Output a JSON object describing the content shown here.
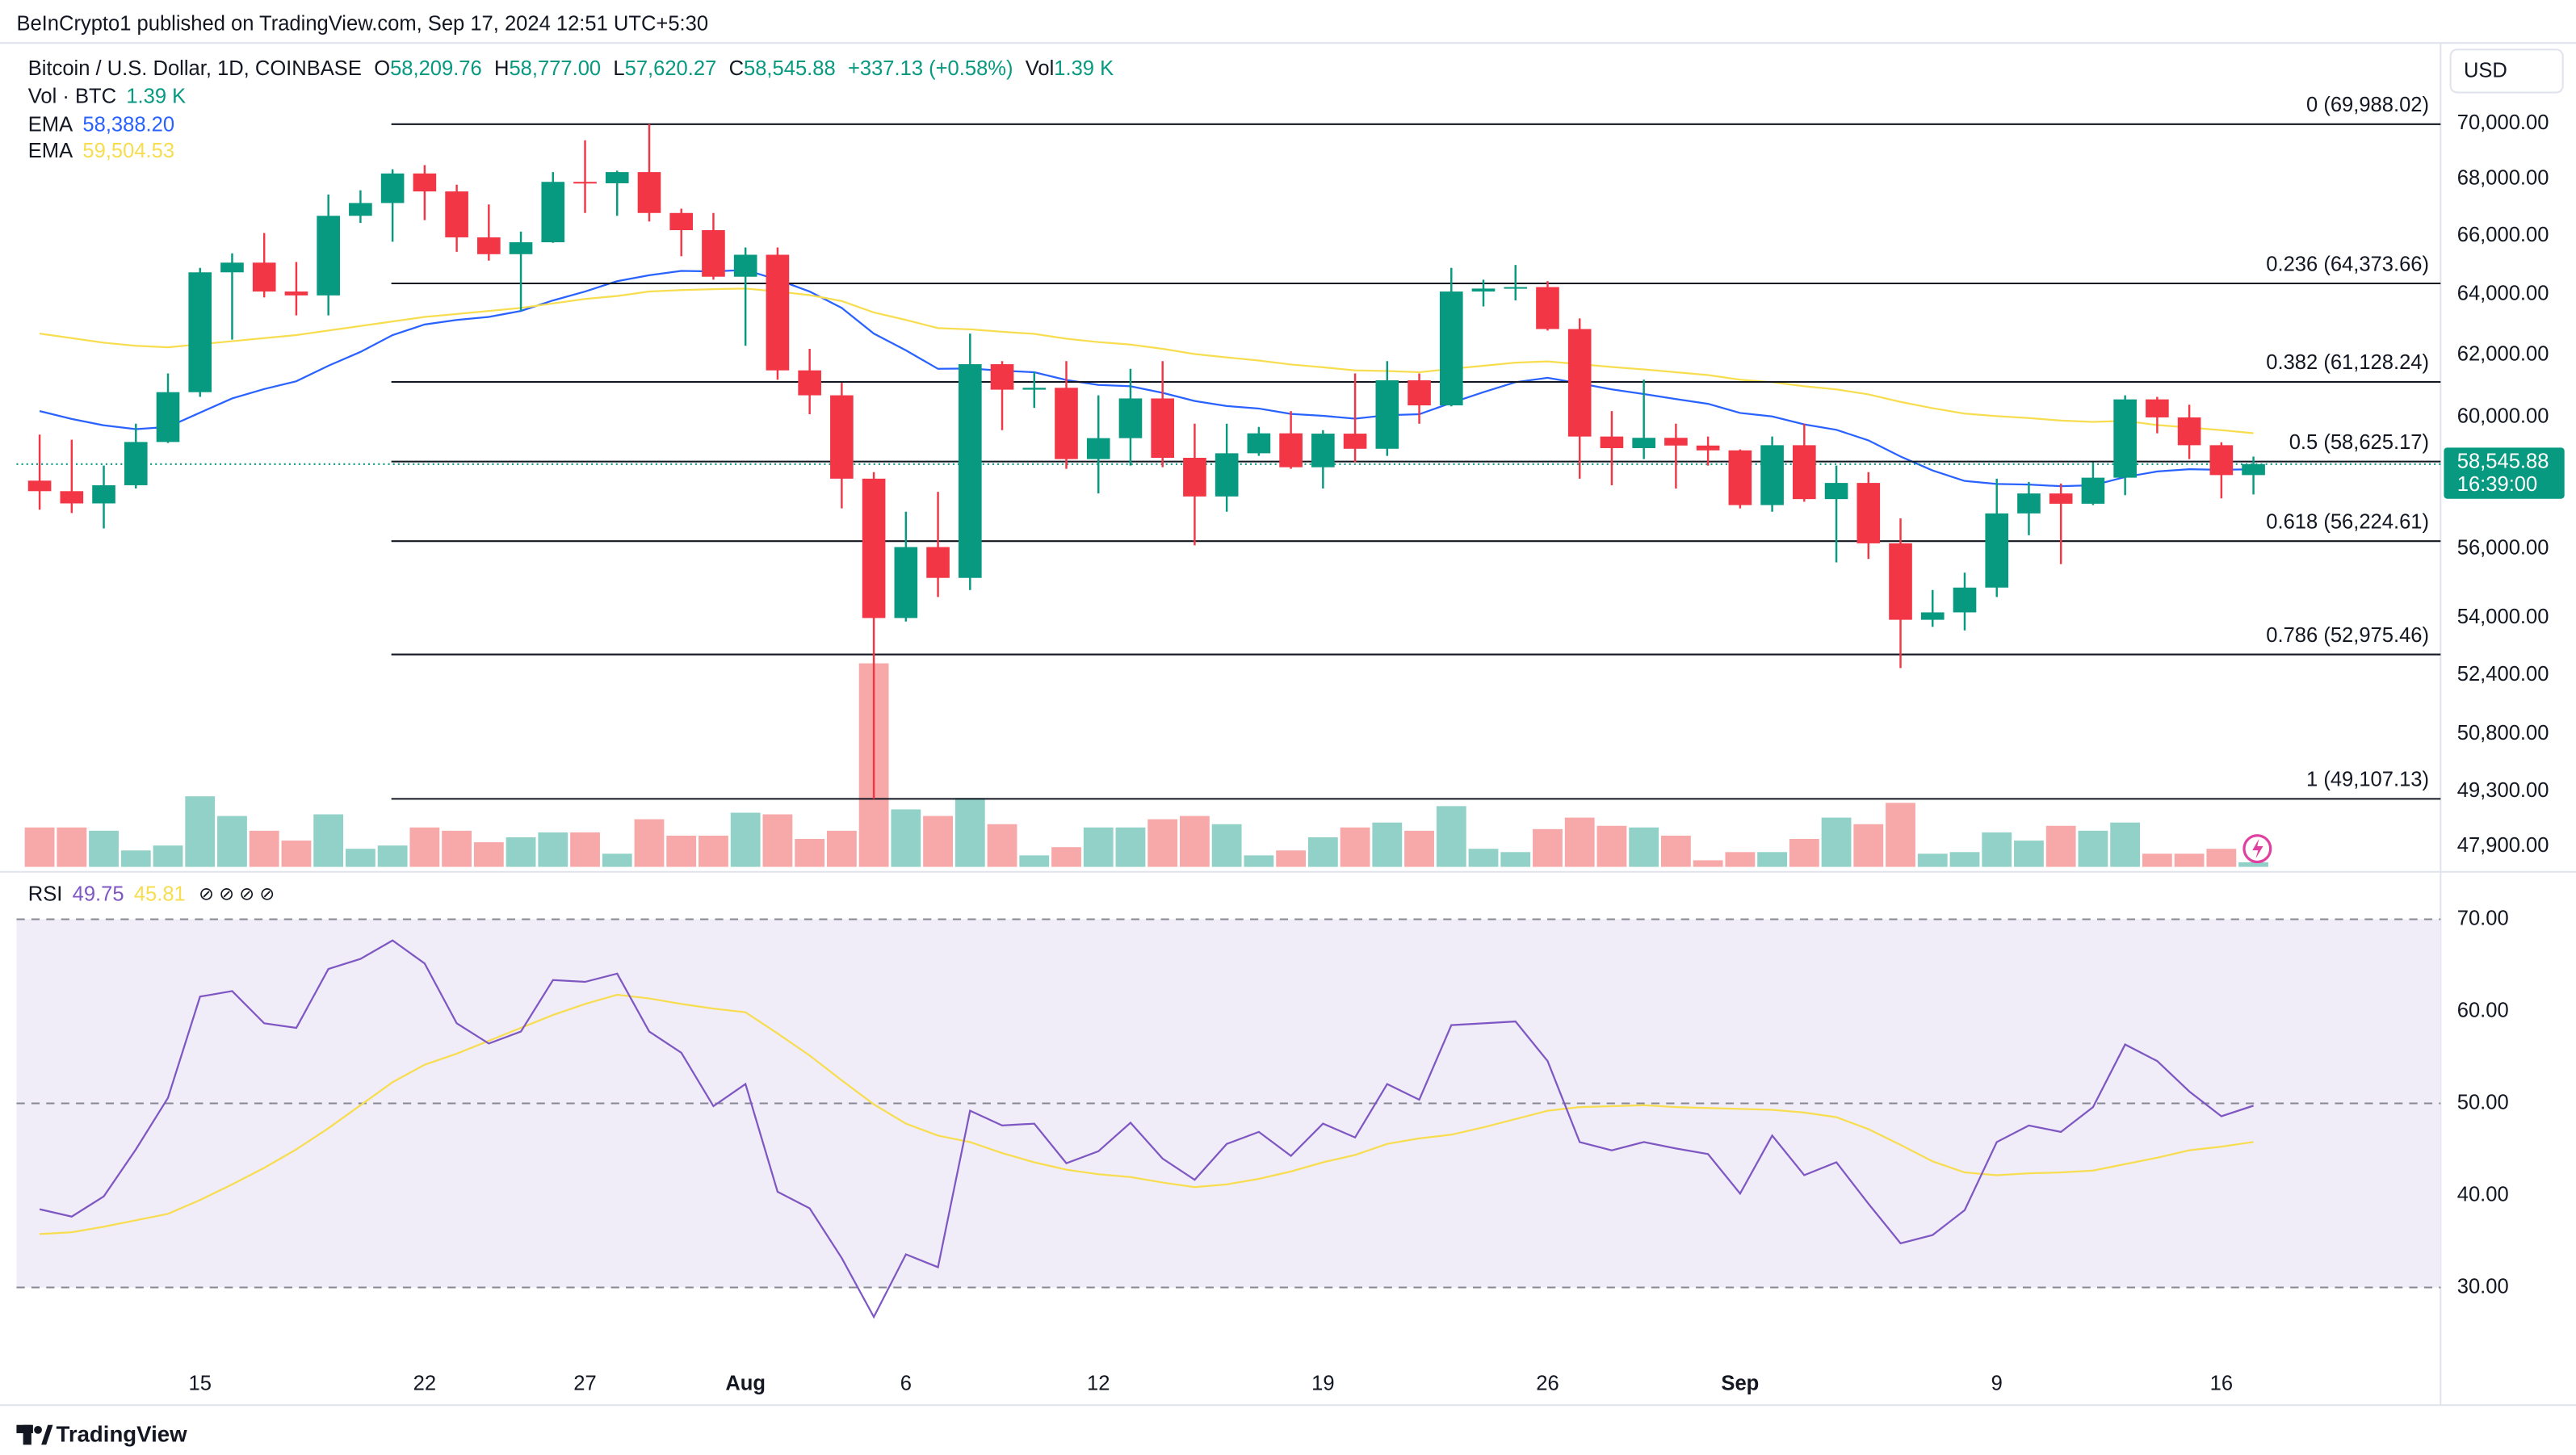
{
  "header": {
    "published": "BeInCrypto1 published on TradingView.com, Sep 17, 2024 12:51 UTC+5:30",
    "symbol": "Bitcoin / U.S. Dollar, 1D, COINBASE",
    "ohlc": [
      {
        "key": "O",
        "value": "58,209.76"
      },
      {
        "key": "H",
        "value": "58,777.00"
      },
      {
        "key": "L",
        "value": "57,620.27"
      },
      {
        "key": "C",
        "value": "58,545.88"
      }
    ],
    "change": "+337.13 (+0.58%)",
    "vol_key": "Vol",
    "vol_value": "1.39 K"
  },
  "currency": "USD",
  "footer": {
    "brand": "TradingView"
  },
  "chart_data": [
    {
      "type": "candlestick",
      "log_scale": true,
      "grid": false,
      "categories": [
        null,
        null,
        null,
        null,
        null,
        "15",
        null,
        null,
        null,
        null,
        null,
        null,
        "22",
        null,
        null,
        null,
        null,
        "27",
        null,
        null,
        null,
        null,
        "Aug",
        null,
        null,
        null,
        null,
        "6",
        null,
        null,
        null,
        null,
        null,
        "12",
        null,
        null,
        null,
        null,
        null,
        null,
        "19",
        null,
        null,
        null,
        null,
        null,
        null,
        "26",
        null,
        null,
        null,
        null,
        null,
        "Sep",
        null,
        null,
        null,
        null,
        null,
        null,
        null,
        "9",
        null,
        null,
        null,
        null,
        null,
        null,
        "16",
        null
      ],
      "open": [
        58040,
        57720,
        57350,
        57900,
        59230,
        60800,
        64750,
        65080,
        64100,
        63970,
        66700,
        67150,
        68200,
        67560,
        65950,
        65370,
        65780,
        67900,
        67850,
        68250,
        66800,
        66200,
        64600,
        65350,
        61500,
        60700,
        58100,
        54000,
        56050,
        55150,
        61700,
        60880,
        60940,
        58700,
        59350,
        60600,
        58740,
        57560,
        58880,
        59500,
        58450,
        59490,
        59020,
        61180,
        60380,
        64100,
        64200,
        64250,
        62850,
        59400,
        59040,
        59360,
        59120,
        58970,
        57300,
        59130,
        57480,
        57970,
        56160,
        53950,
        54160,
        54870,
        57050,
        57650,
        57340,
        58130,
        60570,
        60000,
        59130,
        58209.76
      ],
      "high": [
        59460,
        59300,
        58500,
        59800,
        61400,
        64900,
        65400,
        66100,
        65100,
        67450,
        67600,
        68350,
        68500,
        67800,
        67100,
        66150,
        68250,
        69400,
        68300,
        69988.02,
        66950,
        66800,
        65600,
        65600,
        62200,
        61100,
        58300,
        57100,
        57700,
        62700,
        61800,
        61450,
        61800,
        60700,
        61550,
        61800,
        59800,
        59800,
        59700,
        60200,
        59600,
        61400,
        61800,
        61400,
        64900,
        64500,
        65000,
        64450,
        63200,
        60200,
        61200,
        59800,
        59400,
        59000,
        59400,
        59800,
        58500,
        58300,
        56900,
        54800,
        55300,
        58100,
        58000,
        57950,
        58600,
        60700,
        60650,
        60400,
        59220,
        58777.0
      ],
      "low": [
        57160,
        57060,
        56600,
        57800,
        59200,
        60650,
        62500,
        63900,
        63300,
        63300,
        66450,
        65800,
        66550,
        65450,
        65150,
        63450,
        65760,
        66800,
        66700,
        66500,
        65300,
        64500,
        62300,
        61200,
        60100,
        57200,
        49107.13,
        53900,
        54600,
        54800,
        59600,
        60300,
        58400,
        57650,
        58500,
        58450,
        56100,
        57100,
        58800,
        58400,
        57800,
        58600,
        58800,
        59800,
        60350,
        63600,
        63800,
        62800,
        58100,
        57900,
        58700,
        57800,
        58500,
        57200,
        57100,
        57400,
        55600,
        55700,
        52600,
        53750,
        53650,
        54600,
        56400,
        55550,
        57300,
        57600,
        59500,
        58700,
        57500,
        57620.27
      ],
      "close": [
        57720,
        57350,
        57900,
        59230,
        60800,
        64750,
        65080,
        64100,
        63970,
        66700,
        67150,
        68200,
        67560,
        65950,
        65370,
        65780,
        67900,
        67850,
        68250,
        66800,
        66200,
        64600,
        65350,
        61500,
        60700,
        58100,
        54000,
        56050,
        55150,
        61700,
        60880,
        60940,
        58700,
        59350,
        60600,
        58740,
        57560,
        58880,
        59500,
        58450,
        59490,
        59020,
        61180,
        60380,
        64100,
        64200,
        64250,
        62850,
        59400,
        59040,
        59360,
        59120,
        58970,
        57300,
        59130,
        57480,
        57970,
        56160,
        53950,
        54160,
        54870,
        57050,
        57650,
        57340,
        58130,
        60570,
        60000,
        59130,
        58210,
        58545.88
      ],
      "up_color": "#089981",
      "down_color": "#f23645",
      "ylim": [
        47385,
        72912
      ],
      "yticks": [
        {
          "value": 70000,
          "label": "70,000.00"
        },
        {
          "value": 68000,
          "label": "68,000.00"
        },
        {
          "value": 66000,
          "label": "66,000.00"
        },
        {
          "value": 64000,
          "label": "64,000.00"
        },
        {
          "value": 62000,
          "label": "62,000.00"
        },
        {
          "value": 60000,
          "label": "60,000.00"
        },
        {
          "value": 56000,
          "label": "56,000.00"
        },
        {
          "value": 54000,
          "label": "54,000.00"
        },
        {
          "value": 52400,
          "label": "52,400.00"
        },
        {
          "value": 50800,
          "label": "50,800.00"
        },
        {
          "value": 49300,
          "label": "49,300.00"
        },
        {
          "value": 47900,
          "label": "47,900.00"
        }
      ],
      "series": [
        {
          "name": "EMA",
          "color": "#2962ff",
          "value_label": "58,388.20",
          "values": [
            60200,
            59950,
            59750,
            59630,
            59700,
            60150,
            60600,
            60900,
            61150,
            61650,
            62100,
            62650,
            63000,
            63150,
            63250,
            63450,
            63800,
            64100,
            64450,
            64650,
            64800,
            64780,
            64830,
            64500,
            64100,
            63550,
            62700,
            62150,
            61550,
            61560,
            61490,
            61440,
            61190,
            61030,
            60990,
            60780,
            60520,
            60360,
            60280,
            60110,
            60050,
            59960,
            60070,
            60100,
            60460,
            60800,
            61120,
            61260,
            61080,
            60890,
            60740,
            60580,
            60430,
            60140,
            60030,
            59780,
            59610,
            59280,
            58780,
            58350,
            58030,
            57940,
            57920,
            57870,
            57900,
            58150,
            58320,
            58390,
            58370,
            58388.2
          ]
        },
        {
          "name": "EMA",
          "color": "#f7dd4f",
          "value_label": "59,504.53",
          "values": [
            62700,
            62550,
            62400,
            62300,
            62250,
            62350,
            62450,
            62550,
            62650,
            62800,
            62950,
            63100,
            63250,
            63350,
            63450,
            63550,
            63700,
            63850,
            63950,
            64100,
            64150,
            64180,
            64200,
            64100,
            63980,
            63780,
            63400,
            63150,
            62880,
            62840,
            62760,
            62690,
            62530,
            62420,
            62340,
            62200,
            62030,
            61920,
            61820,
            61690,
            61600,
            61500,
            61480,
            61440,
            61550,
            61650,
            61750,
            61790,
            61700,
            61610,
            61530,
            61440,
            61350,
            61200,
            61120,
            60990,
            60890,
            60730,
            60490,
            60290,
            60120,
            60040,
            59980,
            59900,
            59860,
            59890,
            59760,
            59680,
            59600,
            59504.53
          ]
        }
      ],
      "volume": {
        "name": "Vol · BTC",
        "value_label": "1.39 K",
        "ylim": [
          0,
          250
        ],
        "up_color": "#92d1c8",
        "down_color": "#f7a8a8",
        "values": [
          12,
          12,
          11,
          5,
          6.5,
          21.5,
          15.5,
          11,
          8,
          16,
          5.5,
          6.5,
          12,
          11,
          7.5,
          9,
          10.5,
          10.5,
          4,
          14.5,
          9.5,
          9.5,
          16.5,
          16,
          8.5,
          11,
          62,
          17.5,
          15.5,
          21,
          13,
          3.5,
          6,
          12,
          12,
          14.5,
          15.5,
          13,
          3.5,
          5,
          9,
          12,
          13.5,
          11,
          18.5,
          5.5,
          4.5,
          11.5,
          15,
          12.5,
          12,
          9.5,
          2,
          4.5,
          4.5,
          8.5,
          15,
          13,
          19.5,
          4,
          4.5,
          10.5,
          8,
          12.5,
          11,
          13.5,
          4,
          4,
          5.5,
          1.39
        ]
      },
      "fib_levels": [
        {
          "value": 69988.02,
          "label": "0 (69,988.02)"
        },
        {
          "value": 64373.66,
          "label": "0.236 (64,373.66)"
        },
        {
          "value": 61128.24,
          "label": "0.382 (61,128.24)"
        },
        {
          "value": 58625.17,
          "label": "0.5 (58,625.17)"
        },
        {
          "value": 56224.61,
          "label": "0.618 (56,224.61)"
        },
        {
          "value": 52975.46,
          "label": "0.786 (52,975.46)"
        },
        {
          "value": 49107.13,
          "label": "1 (49,107.13)"
        }
      ],
      "last_price_label": "58,545.88",
      "countdown": "16:39:00"
    },
    {
      "type": "line",
      "title": "RSI",
      "flags": "⊘ ⊘ ⊘ ⊘",
      "ylim": [
        17.4,
        74.8
      ],
      "yticks": [
        {
          "value": 70,
          "label": "70.00"
        },
        {
          "value": 60,
          "label": "60.00"
        },
        {
          "value": 50,
          "label": "50.00"
        },
        {
          "value": 40,
          "label": "40.00"
        },
        {
          "value": 30,
          "label": "30.00"
        }
      ],
      "band": [
        30,
        70
      ],
      "midline": 50,
      "band_color": "#f0ecf8",
      "series": [
        {
          "name": "RSI",
          "color": "#7e57c2",
          "value_label": "49.75",
          "values": [
            38.5,
            37.7,
            39.9,
            45,
            50.6,
            61.6,
            62.2,
            58.7,
            58.2,
            64.6,
            65.7,
            67.7,
            65.2,
            58.7,
            56.5,
            57.8,
            63.4,
            63.2,
            64.1,
            57.8,
            55.5,
            49.7,
            52.1,
            40.4,
            38.6,
            33.2,
            26.8,
            33.6,
            32.2,
            49.2,
            47.6,
            47.8,
            43.5,
            44.8,
            47.9,
            44.0,
            41.7,
            45.6,
            46.9,
            44.3,
            47.8,
            46.3,
            52.1,
            50.4,
            58.5,
            58.7,
            58.9,
            54.6,
            45.8,
            44.9,
            45.8,
            45.1,
            44.5,
            40.2,
            46.5,
            42.2,
            43.6,
            39.1,
            34.8,
            35.7,
            38.4,
            45.8,
            47.6,
            46.9,
            49.6,
            56.4,
            54.6,
            51.3,
            48.6,
            49.75
          ]
        },
        {
          "color": "#f7dd4f",
          "value_label": "45.81",
          "values": [
            35.8,
            36.0,
            36.6,
            37.3,
            38.0,
            39.5,
            41.2,
            43.0,
            45.0,
            47.3,
            49.8,
            52.3,
            54.2,
            55.4,
            56.8,
            58.2,
            59.6,
            60.8,
            61.8,
            61.4,
            60.8,
            60.3,
            59.9,
            57.6,
            55.2,
            52.5,
            49.9,
            47.8,
            46.5,
            45.8,
            44.6,
            43.6,
            42.8,
            42.3,
            42.0,
            41.4,
            40.9,
            41.2,
            41.8,
            42.6,
            43.6,
            44.4,
            45.6,
            46.2,
            46.6,
            47.4,
            48.3,
            49.2,
            49.6,
            49.7,
            49.8,
            49.6,
            49.5,
            49.4,
            49.3,
            49.0,
            48.5,
            47.2,
            45.5,
            43.7,
            42.5,
            42.2,
            42.4,
            42.5,
            42.7,
            43.4,
            44.1,
            44.9,
            45.3,
            45.81
          ]
        }
      ]
    }
  ]
}
